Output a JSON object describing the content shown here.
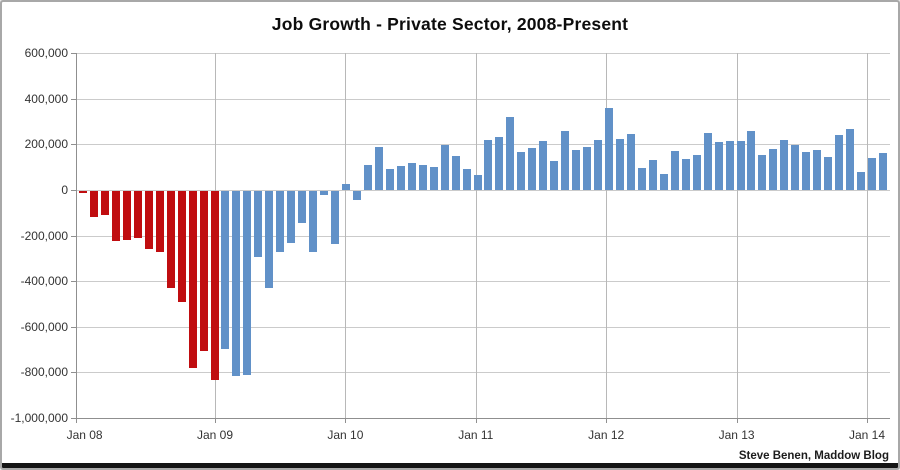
{
  "title": "Job Growth - Private Sector, 2008-Present",
  "footer": {
    "attribution": "Steve Benen, Maddow Blog"
  },
  "colors": {
    "bush_red": "#c00d10",
    "obama_blue": "#6191c8",
    "gridline": "#cbcbcb",
    "year_gridline": "#b8b8b8",
    "axis": "#8f8f8f",
    "label_text": "#333333",
    "footer_bar": "#141414"
  },
  "y_axis": {
    "tick_labels": [
      "600,000",
      "400,000",
      "200,000",
      "0",
      "-200,000",
      "-400,000",
      "-600,000",
      "-800,000",
      "-1,000,000"
    ],
    "max": 600000,
    "min": -1000000,
    "step": 200000
  },
  "x_axis": {
    "tick_labels": [
      "Jan 08",
      "Jan 09",
      "Jan 10",
      "Jan 11",
      "Jan 12",
      "Jan 13",
      "Jan 14"
    ]
  },
  "chart_data": {
    "type": "bar",
    "title": "Job Growth - Private Sector, 2008-Present",
    "xlabel": "",
    "ylabel": "",
    "ylim": [
      -1000000,
      600000
    ],
    "grid": true,
    "legend": "none",
    "color_rule": "bars Jan 2008 through Jan 2009 red, Feb 2009 onward blue",
    "red_through_index": 12,
    "x": [
      "Jan 08",
      "Feb 08",
      "Mar 08",
      "Apr 08",
      "May 08",
      "Jun 08",
      "Jul 08",
      "Aug 08",
      "Sep 08",
      "Oct 08",
      "Nov 08",
      "Dec 08",
      "Jan 09",
      "Feb 09",
      "Mar 09",
      "Apr 09",
      "May 09",
      "Jun 09",
      "Jul 09",
      "Aug 09",
      "Sep 09",
      "Oct 09",
      "Nov 09",
      "Dec 09",
      "Jan 10",
      "Feb 10",
      "Mar 10",
      "Apr 10",
      "May 10",
      "Jun 10",
      "Jul 10",
      "Aug 10",
      "Sep 10",
      "Oct 10",
      "Nov 10",
      "Dec 10",
      "Jan 11",
      "Feb 11",
      "Mar 11",
      "Apr 11",
      "May 11",
      "Jun 11",
      "Jul 11",
      "Aug 11",
      "Sep 11",
      "Oct 11",
      "Nov 11",
      "Dec 11",
      "Jan 12",
      "Feb 12",
      "Mar 12",
      "Apr 12",
      "May 12",
      "Jun 12",
      "Jul 12",
      "Aug 12",
      "Sep 12",
      "Oct 12",
      "Nov 12",
      "Dec 12",
      "Jan 13",
      "Feb 13",
      "Mar 13",
      "Apr 13",
      "May 13",
      "Jun 13",
      "Jul 13",
      "Aug 13",
      "Sep 13",
      "Oct 13",
      "Nov 13",
      "Dec 13",
      "Jan 14",
      "Feb 14"
    ],
    "values": [
      -10000,
      -115000,
      -105000,
      -220000,
      -215000,
      -205000,
      -255000,
      -270000,
      -425000,
      -485000,
      -775000,
      -700000,
      -830000,
      -695000,
      -810000,
      -805000,
      -290000,
      -425000,
      -270000,
      -230000,
      -140000,
      -270000,
      -20000,
      -235000,
      25000,
      -40000,
      110000,
      190000,
      90000,
      105000,
      120000,
      110000,
      100000,
      195000,
      150000,
      90000,
      65000,
      220000,
      230000,
      320000,
      165000,
      185000,
      215000,
      125000,
      260000,
      175000,
      190000,
      220000,
      360000,
      225000,
      245000,
      95000,
      130000,
      70000,
      170000,
      135000,
      155000,
      250000,
      210000,
      215000,
      215000,
      260000,
      155000,
      180000,
      220000,
      195000,
      165000,
      175000,
      145000,
      240000,
      265000,
      80000,
      140000,
      160000
    ]
  }
}
